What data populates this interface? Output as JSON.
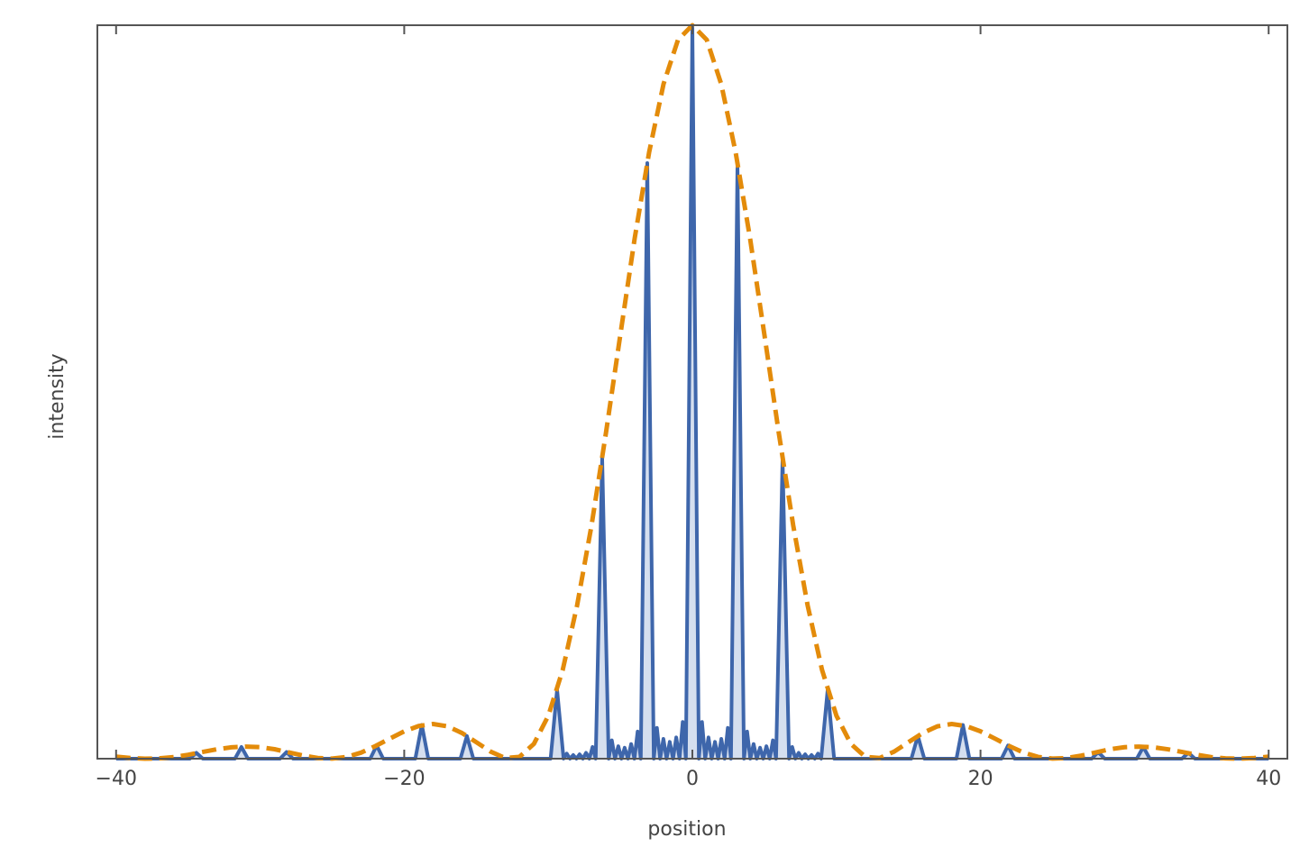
{
  "chart_data": {
    "type": "line",
    "xlabel": "position",
    "ylabel": "intensity",
    "xlim": [
      -41.3,
      41.3
    ],
    "ylim": [
      0,
      1
    ],
    "xticks": [
      {
        "value": -40,
        "label": "−40"
      },
      {
        "value": -20,
        "label": "−20"
      },
      0,
      20,
      40
    ],
    "series": [
      {
        "color": "#3e66ab",
        "fill": "#d5dfef",
        "x": [
          -40,
          -34.88,
          -34.43,
          -33.98,
          -31.75,
          -31.3,
          -30.85,
          -28.62,
          -28.17,
          -27.72,
          -22.36,
          -21.91,
          -21.46,
          -19.23,
          -18.78,
          -18.33,
          -16.1,
          -15.65,
          -15.2,
          -9.84,
          -9.39,
          -8.94,
          -8.72,
          -8.5,
          -8.27,
          -8.05,
          -7.83,
          -7.6,
          -7.38,
          -7.15,
          -6.93,
          -6.71,
          -6.26,
          -5.81,
          -5.59,
          -5.37,
          -5.14,
          -4.92,
          -4.7,
          -4.47,
          -4.25,
          -4.02,
          -3.8,
          -3.58,
          -3.13,
          -2.68,
          -2.46,
          -2.24,
          -2.01,
          -1.79,
          -1.57,
          -1.34,
          -1.12,
          -0.89,
          -0.67,
          -0.45,
          0,
          0.45,
          0.67,
          0.89,
          1.12,
          1.34,
          1.57,
          1.79,
          2.01,
          2.24,
          2.46,
          2.68,
          3.13,
          3.58,
          3.8,
          4.02,
          4.25,
          4.47,
          4.7,
          4.92,
          5.14,
          5.37,
          5.59,
          5.81,
          6.26,
          6.71,
          6.93,
          7.15,
          7.38,
          7.6,
          7.83,
          8.05,
          8.27,
          8.5,
          8.72,
          8.94,
          9.39,
          9.84,
          15.2,
          15.65,
          16.1,
          18.33,
          18.78,
          19.23,
          21.46,
          21.91,
          22.36,
          27.72,
          28.17,
          28.62,
          30.85,
          31.3,
          31.75,
          33.98,
          34.43,
          34.88,
          40
        ],
        "values": [
          0,
          0,
          0.008,
          0,
          0,
          0.016,
          0,
          0,
          0.009,
          0,
          0,
          0.018,
          0,
          0,
          0.046,
          0,
          0,
          0.031,
          0,
          0,
          0.094,
          0,
          0.007,
          0,
          0.005,
          0,
          0.006,
          0,
          0.008,
          0,
          0.016,
          0,
          0.41,
          0,
          0.025,
          0,
          0.017,
          0,
          0.015,
          0,
          0.02,
          0,
          0.037,
          0,
          0.812,
          0,
          0.042,
          0,
          0.027,
          0,
          0.023,
          0,
          0.029,
          0,
          0.05,
          0,
          1,
          0,
          0.05,
          0,
          0.029,
          0,
          0.023,
          0,
          0.027,
          0,
          0.042,
          0,
          0.812,
          0,
          0.037,
          0,
          0.02,
          0,
          0.015,
          0,
          0.017,
          0,
          0.025,
          0,
          0.41,
          0,
          0.016,
          0,
          0.008,
          0,
          0.006,
          0,
          0.005,
          0,
          0.007,
          0,
          0.094,
          0,
          0,
          0.031,
          0,
          0,
          0.046,
          0,
          0,
          0.018,
          0,
          0,
          0.009,
          0,
          0,
          0.016,
          0,
          0,
          0.008,
          0,
          0
        ]
      },
      {
        "color": "#e38b0a",
        "dash": true,
        "x": [
          -40,
          -39,
          -38,
          -37,
          -36,
          -35,
          -34,
          -33,
          -32,
          -31,
          -30,
          -29,
          -28,
          -27,
          -26,
          -25,
          -24,
          -23,
          -22,
          -21,
          -20,
          -19,
          -18,
          -17,
          -16,
          -15,
          -14,
          -13,
          -12,
          -11,
          -10,
          -9,
          -8,
          -7,
          -6,
          -5,
          -4,
          -3,
          -2,
          -1,
          0,
          1,
          2,
          3,
          4,
          5,
          6,
          7,
          8,
          9,
          10,
          11,
          12,
          13,
          14,
          15,
          16,
          17,
          18,
          19,
          20,
          21,
          22,
          23,
          24,
          25,
          26,
          27,
          28,
          29,
          30,
          31,
          32,
          33,
          34,
          35,
          36,
          37,
          38,
          39,
          40
        ],
        "values": [
          0.0027,
          0.0009,
          0,
          0.0004,
          0.0022,
          0.0053,
          0.0091,
          0.0128,
          0.0155,
          0.0165,
          0.0157,
          0.0129,
          0.0085,
          0.0042,
          0.0009,
          0.0001,
          0.0024,
          0.0082,
          0.0172,
          0.0274,
          0.0373,
          0.0445,
          0.0473,
          0.0441,
          0.0351,
          0.0225,
          0.0096,
          0.0009,
          0.0025,
          0.0202,
          0.0585,
          0.121,
          0.209,
          0.318,
          0.444,
          0.578,
          0.71,
          0.827,
          0.92,
          0.98,
          1,
          0.98,
          0.92,
          0.827,
          0.71,
          0.578,
          0.444,
          0.318,
          0.209,
          0.121,
          0.0585,
          0.0202,
          0.0025,
          0.0009,
          0.0096,
          0.0225,
          0.0351,
          0.0441,
          0.0473,
          0.0445,
          0.0373,
          0.0274,
          0.0172,
          0.0082,
          0.0024,
          0.0001,
          0.0009,
          0.0042,
          0.0085,
          0.0129,
          0.0157,
          0.0165,
          0.0155,
          0.0128,
          0.0091,
          0.0053,
          0.0022,
          0.0004,
          0,
          0.0009,
          0.0027
        ]
      }
    ]
  }
}
